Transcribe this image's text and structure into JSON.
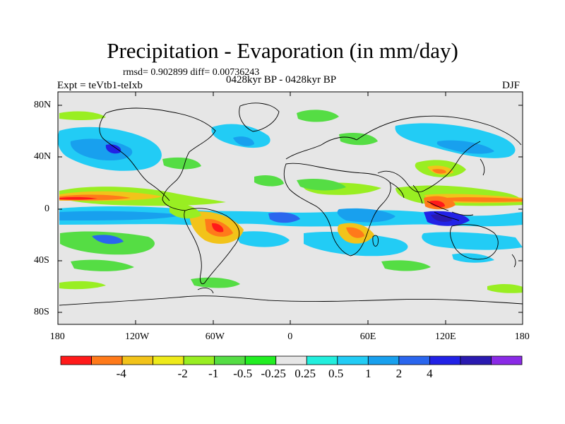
{
  "title": "Precipitation - Evaporation (in mm/day)",
  "stats_line": "rmsd= 0.902899 diff= 0.00736243",
  "experiment_label": "Expt = teVtb1-teIxb",
  "period_label": "0428kyr BP - 0428kyr BP",
  "season_label": "DJF",
  "lat_ticks": [
    "80N",
    "40N",
    "0",
    "40S",
    "80S"
  ],
  "lon_ticks": [
    "180",
    "120W",
    "60W",
    "0",
    "60E",
    "120E",
    "180"
  ],
  "colorbar": {
    "colors": [
      "#ff1a1a",
      "#ff7a1a",
      "#f2c31a",
      "#eeea1a",
      "#99ee22",
      "#55dd44",
      "#22ee22",
      "#e6e6e6",
      "#22eedd",
      "#22ccf5",
      "#18a0ee",
      "#2a66ee",
      "#2222e6",
      "#2a1ab0",
      "#8a2ae6"
    ],
    "labels": [
      "-4",
      "-2",
      "-1",
      "-0.5",
      "-0.25",
      "0.25",
      "0.5",
      "1",
      "2",
      "4"
    ]
  },
  "background_color": "#e6e6e6"
}
